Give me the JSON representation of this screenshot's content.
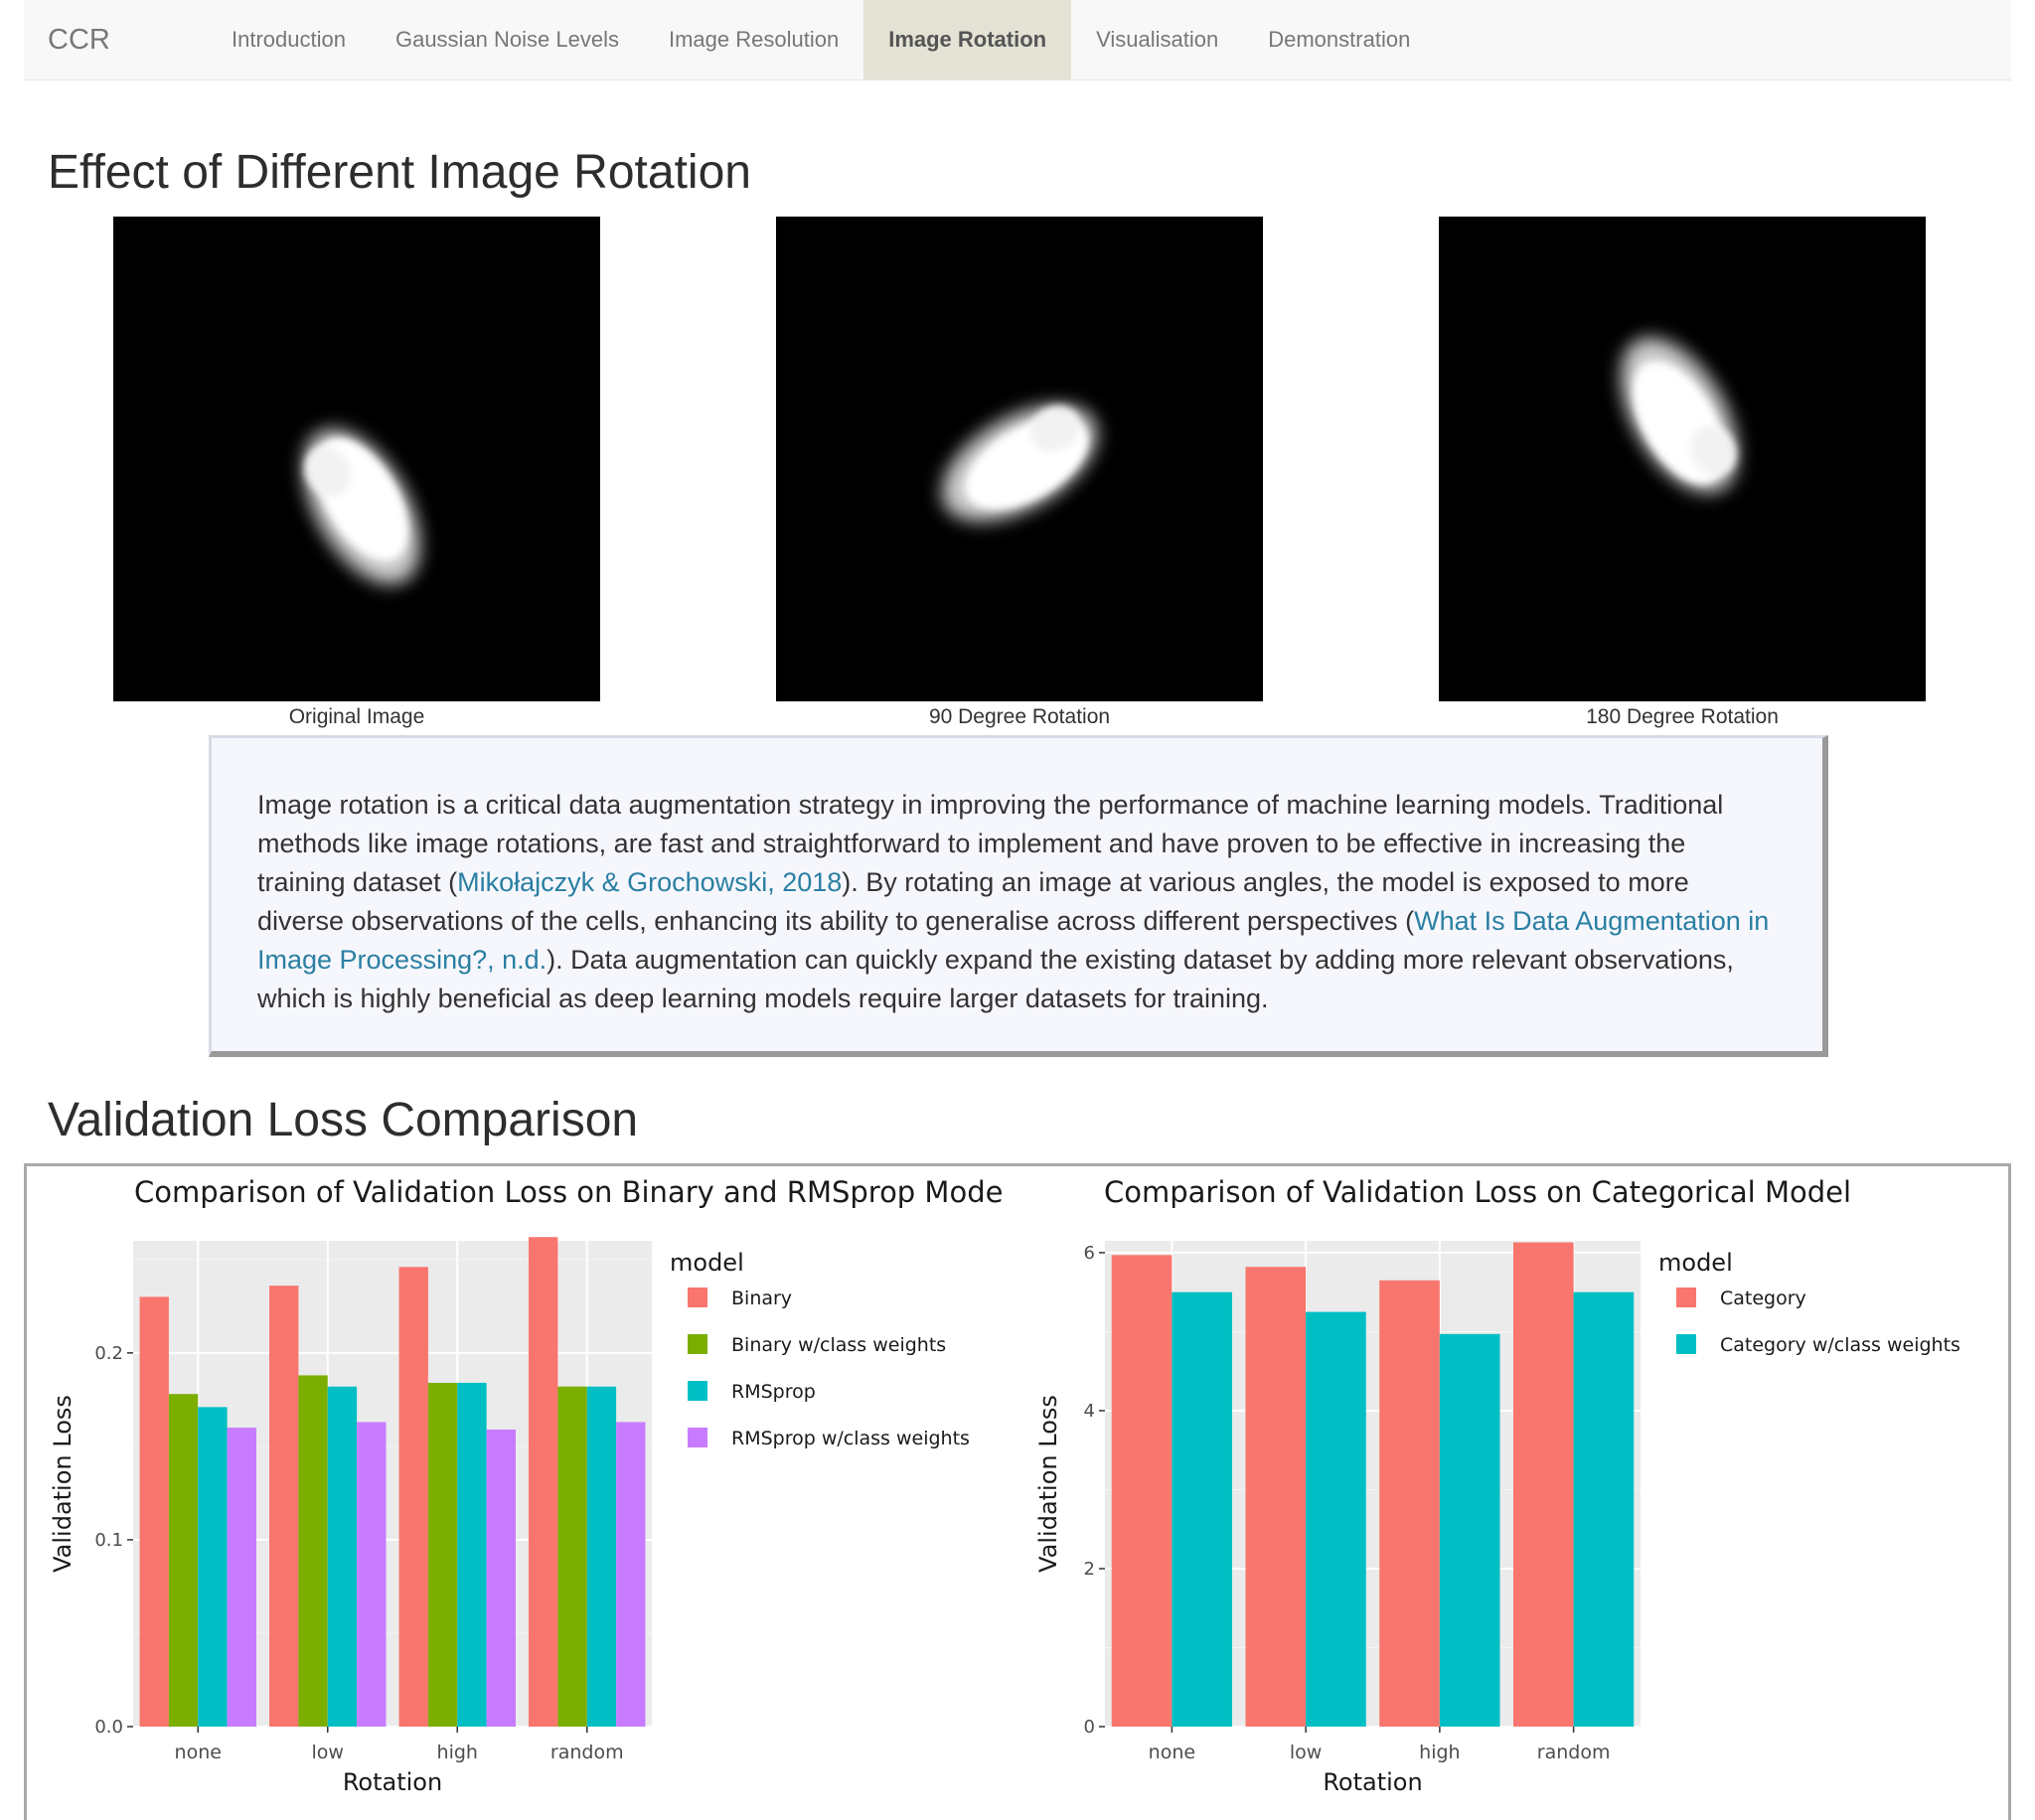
{
  "navbar": {
    "brand": "CCR",
    "tabs": [
      {
        "label": "Introduction",
        "active": false
      },
      {
        "label": "Gaussian Noise Levels",
        "active": false
      },
      {
        "label": "Image Resolution",
        "active": false
      },
      {
        "label": "Image Rotation",
        "active": true
      },
      {
        "label": "Visualisation",
        "active": false
      },
      {
        "label": "Demonstration",
        "active": false
      }
    ]
  },
  "rotation_section": {
    "title": "Effect of Different Image Rotation",
    "images": [
      {
        "caption": "Original Image",
        "rotation_deg": 0
      },
      {
        "caption": "90 Degree Rotation",
        "rotation_deg": 90
      },
      {
        "caption": "180 Degree Rotation",
        "rotation_deg": 180
      }
    ],
    "paragraph": {
      "part1": "Image rotation is a critical data augmentation strategy in improving the performance of machine learning models. Traditional methods like image rotations, are fast and straightforward to implement and have proven to be effective in increasing the training dataset (",
      "link1": "Mikołajczyk & Grochowski, 2018",
      "part2": "). By rotating an image at various angles, the model is exposed to more diverse observations of the cells, enhancing its ability to generalise across different perspectives (",
      "link2": "What Is Data Augmentation in Image Processing?, n.d.",
      "part3": "). Data augmentation can quickly expand the existing dataset by adding more relevant observations, which is highly beneficial as deep learning models require larger datasets for training."
    }
  },
  "validation_section": {
    "title": "Validation Loss Comparison"
  },
  "chart_data": [
    {
      "type": "bar",
      "title": "Comparison of Validation Loss on Binary and RMSprop Mode",
      "xlabel": "Rotation",
      "ylabel": "Validation Loss",
      "categories": [
        "none",
        "low",
        "high",
        "random"
      ],
      "ylim": [
        0,
        0.26
      ],
      "yticks": [
        0.0,
        0.1,
        0.2
      ],
      "ytick_labels": [
        "0.0",
        "0.1",
        "0.2"
      ],
      "legend_title": "model",
      "legend_position": "right",
      "grid": true,
      "series": [
        {
          "name": "Binary",
          "color": "#F8766D",
          "values": [
            0.23,
            0.236,
            0.246,
            0.262
          ]
        },
        {
          "name": "Binary w/class weights",
          "color": "#7CAE00",
          "values": [
            0.178,
            0.188,
            0.184,
            0.182
          ]
        },
        {
          "name": "RMSprop",
          "color": "#00BFC4",
          "values": [
            0.171,
            0.182,
            0.184,
            0.182
          ]
        },
        {
          "name": "RMSprop w/class weights",
          "color": "#C77CFF",
          "values": [
            0.16,
            0.163,
            0.159,
            0.163
          ]
        }
      ]
    },
    {
      "type": "bar",
      "title": "Comparison of Validation Loss on Categorical Model",
      "xlabel": "Rotation",
      "ylabel": "Validation Loss",
      "categories": [
        "none",
        "low",
        "high",
        "random"
      ],
      "ylim": [
        0,
        6.15
      ],
      "yticks": [
        0,
        2,
        4,
        6
      ],
      "ytick_labels": [
        "0",
        "2",
        "4",
        "6"
      ],
      "legend_title": "model",
      "legend_position": "right",
      "grid": true,
      "series": [
        {
          "name": "Category",
          "color": "#F8766D",
          "values": [
            5.97,
            5.82,
            5.65,
            6.13
          ]
        },
        {
          "name": "Category w/class weights",
          "color": "#00BFC4",
          "values": [
            5.5,
            5.25,
            4.97,
            5.5
          ]
        }
      ]
    }
  ]
}
